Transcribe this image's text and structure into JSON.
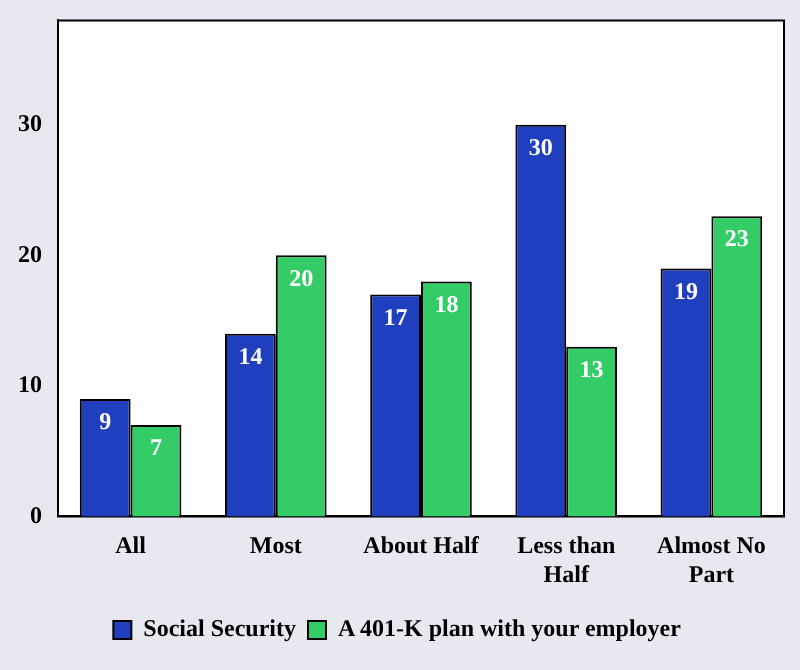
{
  "chart_data": {
    "type": "bar",
    "categories": [
      "All",
      "Most",
      "About Half",
      "Less than Half",
      "Almost No Part"
    ],
    "series": [
      {
        "name": "Social Security",
        "color": "#1f3fbf",
        "values": [
          9,
          14,
          17,
          30,
          19
        ]
      },
      {
        "name": "A 401-K plan with your employer",
        "color": "#33cc66",
        "values": [
          7,
          20,
          18,
          13,
          23
        ]
      }
    ],
    "ylim": [
      0,
      38
    ],
    "yticks": [
      0,
      10,
      20,
      30
    ],
    "grid": false,
    "legend": "bottom",
    "data_labels": true
  }
}
